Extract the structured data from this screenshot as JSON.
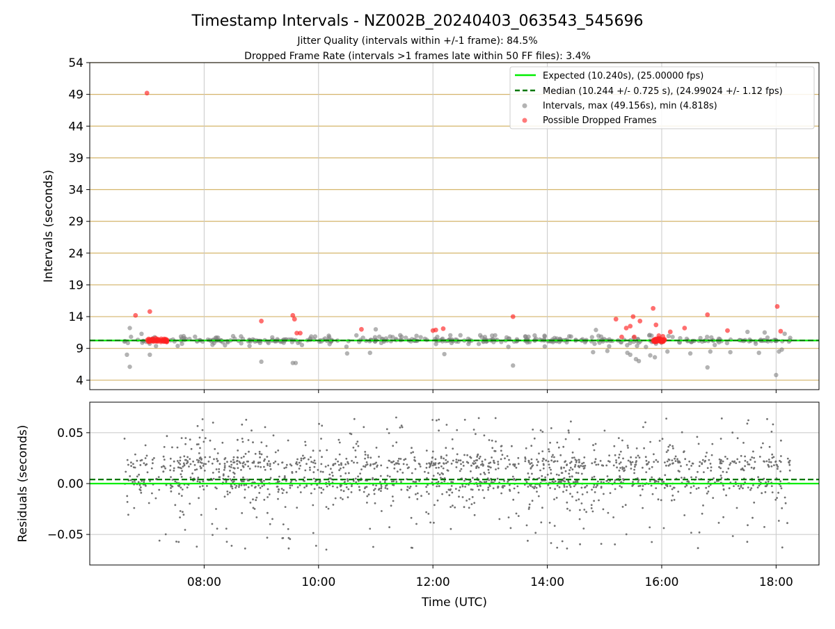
{
  "figure": {
    "title": "Timestamp Intervals - NZ002B_20240403_063543_545696",
    "subtitle_line1": "Jitter Quality (intervals within +/-1 frame): 84.5%",
    "subtitle_line2": "Dropped Frame Rate (intervals >1 frames late within 50 FF files): 3.4%"
  },
  "chart_data": [
    {
      "type": "scatter",
      "panel": "top",
      "ylabel": "Intervals (seconds)",
      "xlabel": "",
      "xlim_hours": [
        6.0,
        18.75
      ],
      "ylim": [
        2.5,
        54
      ],
      "yticks": [
        4,
        9,
        14,
        19,
        24,
        29,
        34,
        39,
        44,
        49,
        54
      ],
      "xticks_hours": [
        8,
        10,
        12,
        14,
        16,
        18
      ],
      "xtick_labels": [
        "08:00",
        "10:00",
        "12:00",
        "14:00",
        "16:00",
        "18:00"
      ],
      "grid": "y-gridlines goldenrod, x-gridlines light gray",
      "legend_position": "top-right",
      "legend": [
        "Expected (10.240s), (25.00000 fps)",
        "Median (10.244 +/- 0.725 s), (24.99024 +/- 1.12 fps)",
        "Intervals, max (49.156s), min (4.818s)",
        "Possible Dropped Frames"
      ],
      "colors": {
        "expected": "#00ee00",
        "median": "#007700",
        "intervals": "#808080",
        "dropped": "#ff2222",
        "ygrid": "#d4b46a",
        "xgrid": "#c8c8c8"
      },
      "expected_value": 10.24,
      "median_value": 10.244,
      "dropped_points": [
        [
          7.0,
          49.2
        ],
        [
          6.8,
          14.2
        ],
        [
          7.05,
          14.8
        ],
        [
          9.0,
          13.3
        ],
        [
          9.55,
          14.2
        ],
        [
          9.58,
          13.6
        ],
        [
          9.62,
          11.4
        ],
        [
          9.68,
          11.4
        ],
        [
          10.75,
          12.0
        ],
        [
          12.0,
          11.8
        ],
        [
          12.05,
          11.9
        ],
        [
          12.18,
          12.1
        ],
        [
          13.4,
          14.0
        ],
        [
          15.2,
          13.6
        ],
        [
          15.3,
          10.8
        ],
        [
          15.38,
          12.2
        ],
        [
          15.45,
          12.5
        ],
        [
          15.5,
          14.0
        ],
        [
          15.52,
          10.8
        ],
        [
          15.62,
          13.3
        ],
        [
          15.85,
          15.3
        ],
        [
          15.9,
          12.7
        ],
        [
          15.95,
          11.0
        ],
        [
          16.15,
          11.6
        ],
        [
          16.4,
          12.2
        ],
        [
          16.8,
          14.3
        ],
        [
          17.15,
          11.8
        ],
        [
          18.02,
          15.6
        ],
        [
          18.08,
          11.7
        ],
        [
          7.1,
          10.5
        ],
        [
          7.15,
          10.6
        ],
        [
          7.2,
          10.4
        ],
        [
          7.25,
          10.5
        ],
        [
          15.9,
          10.5
        ],
        [
          15.95,
          10.6
        ],
        [
          16.0,
          10.4
        ],
        [
          16.02,
          10.9
        ]
      ],
      "intervals_outliers": [
        [
          6.7,
          6.1
        ],
        [
          6.65,
          8.0
        ],
        [
          6.7,
          12.2
        ],
        [
          7.05,
          8.0
        ],
        [
          9.0,
          6.9
        ],
        [
          9.55,
          6.7
        ],
        [
          9.6,
          6.7
        ],
        [
          10.5,
          8.2
        ],
        [
          10.9,
          8.3
        ],
        [
          11.0,
          12.0
        ],
        [
          12.2,
          8.1
        ],
        [
          13.4,
          6.3
        ],
        [
          14.8,
          8.4
        ],
        [
          14.85,
          11.9
        ],
        [
          15.05,
          8.6
        ],
        [
          15.4,
          8.3
        ],
        [
          15.45,
          8.0
        ],
        [
          15.55,
          7.3
        ],
        [
          15.6,
          7.0
        ],
        [
          15.8,
          7.9
        ],
        [
          15.88,
          7.6
        ],
        [
          16.1,
          8.5
        ],
        [
          16.5,
          8.2
        ],
        [
          16.8,
          6.0
        ],
        [
          16.85,
          8.5
        ],
        [
          17.2,
          8.4
        ],
        [
          17.7,
          8.3
        ],
        [
          18.0,
          4.8
        ],
        [
          18.05,
          8.5
        ],
        [
          18.1,
          8.8
        ],
        [
          18.15,
          11.3
        ],
        [
          17.5,
          11.6
        ],
        [
          17.8,
          11.5
        ]
      ]
    },
    {
      "type": "scatter",
      "panel": "bottom",
      "ylabel": "Residuals (seconds)",
      "xlabel": "Time (UTC)",
      "xlim_hours": [
        6.0,
        18.75
      ],
      "ylim": [
        -0.08,
        0.08
      ],
      "yticks": [
        -0.05,
        0.0,
        0.05
      ],
      "ytick_labels": [
        "−0.05",
        "0.00",
        "0.05"
      ],
      "xticks_hours": [
        8,
        10,
        12,
        14,
        16,
        18
      ],
      "xtick_labels": [
        "08:00",
        "10:00",
        "12:00",
        "14:00",
        "16:00",
        "18:00"
      ],
      "grid": "on, light gray",
      "expected_value": 0.0,
      "median_value": 0.004,
      "colors": {
        "points": "#707070",
        "expected": "#00ee00",
        "median": "#007700"
      },
      "data_range_hours": [
        6.6,
        18.25
      ],
      "density_note": "~2000 points concentrated near 0.000 and 0.020 with spread to ±0.05"
    }
  ]
}
